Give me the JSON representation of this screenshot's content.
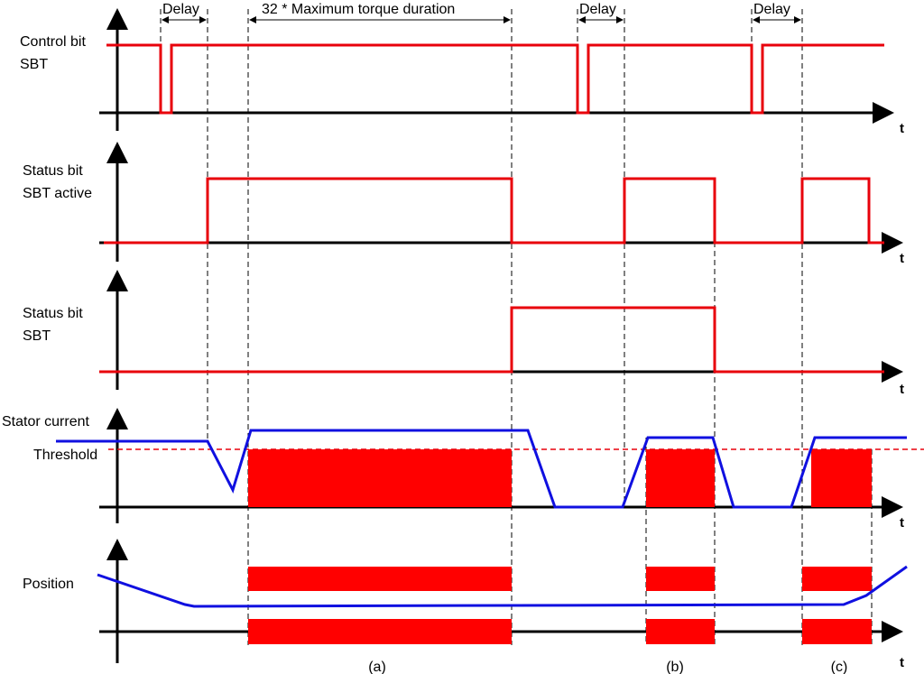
{
  "annotations": {
    "delays": [
      "Delay",
      "Delay",
      "Delay"
    ],
    "duration": "32 * Maximum torque duration"
  },
  "signals": [
    {
      "label": [
        "Control bit",
        "SBT"
      ],
      "axis": "t"
    },
    {
      "label": [
        "Status bit",
        "SBT active"
      ],
      "axis": "t"
    },
    {
      "label": [
        "Status bit",
        "SBT"
      ],
      "axis": "t"
    },
    {
      "label": [
        "Stator current",
        "Threshold"
      ],
      "axis": "t"
    },
    {
      "label": [
        "Position"
      ],
      "axis": "t"
    }
  ],
  "cases": [
    "(a)",
    "(b)",
    "(c)"
  ]
}
